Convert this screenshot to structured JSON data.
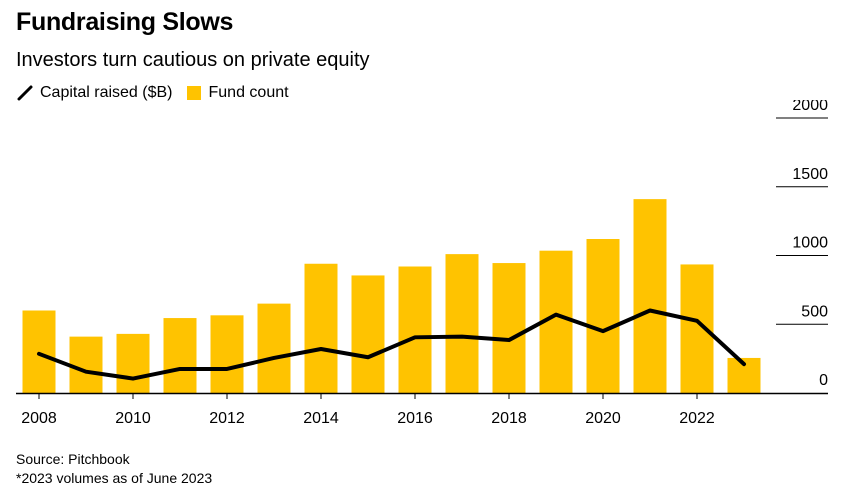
{
  "chart_data": {
    "type": "bar",
    "title": "Fundraising Slows",
    "subtitle": "Investors turn cautious on private equity",
    "x": [
      2008,
      2009,
      2010,
      2011,
      2012,
      2013,
      2014,
      2015,
      2016,
      2017,
      2018,
      2019,
      2020,
      2021,
      2022,
      2023
    ],
    "x_tick_labels": [
      "2008",
      "2010",
      "2012",
      "2014",
      "2016",
      "2018",
      "2020",
      "2022"
    ],
    "y_tick_labels": [
      "2000",
      "1500",
      "1000",
      "500",
      "0"
    ],
    "ylim": [
      0,
      2000
    ],
    "series": [
      {
        "name": "Fund count",
        "type": "bar",
        "color": "#FFC300",
        "values": [
          600,
          410,
          430,
          545,
          565,
          650,
          940,
          855,
          920,
          1010,
          945,
          1035,
          1120,
          1410,
          935,
          255
        ]
      },
      {
        "name": "Capital raised ($B)",
        "type": "line",
        "color": "#000000",
        "values": [
          285,
          155,
          105,
          175,
          175,
          255,
          320,
          260,
          405,
          410,
          385,
          570,
          450,
          600,
          525,
          210
        ]
      }
    ],
    "grid": true,
    "legend_position": "top-left"
  },
  "footer": {
    "source": "Source: Pitchbook",
    "note": "*2023 volumes as of June 2023"
  }
}
